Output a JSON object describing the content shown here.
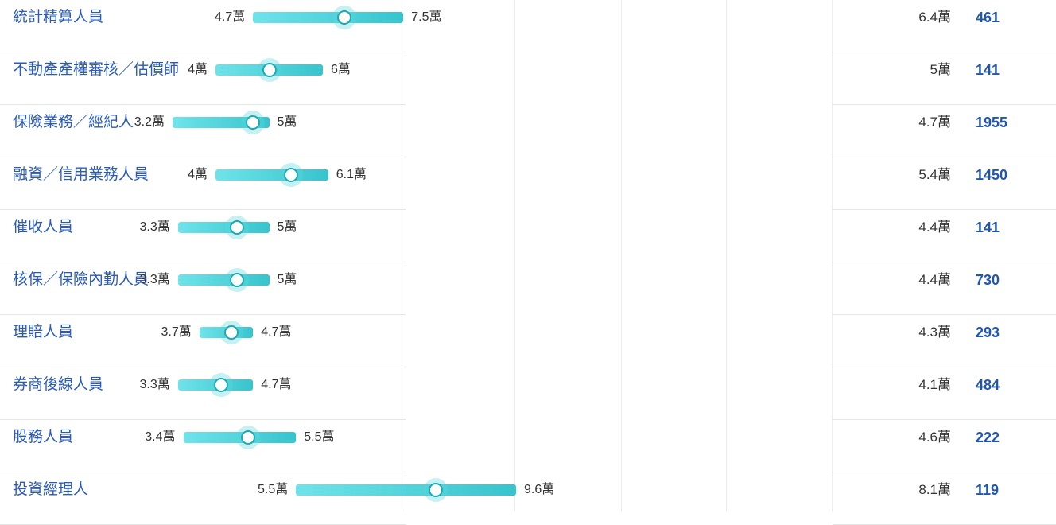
{
  "chart_data": {
    "type": "range",
    "unit": "萬",
    "xlim": [
      0,
      11
    ],
    "rows": [
      {
        "job": "統計精算人員",
        "min": 4.7,
        "max": 7.5,
        "min_label": "4.7萬",
        "max_label": "7.5萬",
        "median": 6.4,
        "median_label": "6.4萬",
        "count": "461"
      },
      {
        "job": "不動產產權審核／估價師",
        "min": 4,
        "max": 6,
        "min_label": "4萬",
        "max_label": "6萬",
        "median": 5,
        "median_label": "5萬",
        "count": "141"
      },
      {
        "job": "保險業務／經紀人",
        "min": 3.2,
        "max": 5,
        "min_label": "3.2萬",
        "max_label": "5萬",
        "median": 4.7,
        "median_label": "4.7萬",
        "count": "1955"
      },
      {
        "job": "融資／信用業務人員",
        "min": 4,
        "max": 6.1,
        "min_label": "4萬",
        "max_label": "6.1萬",
        "median": 5.4,
        "median_label": "5.4萬",
        "count": "1450"
      },
      {
        "job": "催收人員",
        "min": 3.3,
        "max": 5,
        "min_label": "3.3萬",
        "max_label": "5萬",
        "median": 4.4,
        "median_label": "4.4萬",
        "count": "141"
      },
      {
        "job": "核保／保險內勤人員",
        "min": 3.3,
        "max": 5,
        "min_label": "3.3萬",
        "max_label": "5萬",
        "median": 4.4,
        "median_label": "4.4萬",
        "count": "730"
      },
      {
        "job": "理賠人員",
        "min": 3.7,
        "max": 4.7,
        "min_label": "3.7萬",
        "max_label": "4.7萬",
        "median": 4.3,
        "median_label": "4.3萬",
        "count": "293"
      },
      {
        "job": "券商後線人員",
        "min": 3.3,
        "max": 4.7,
        "min_label": "3.3萬",
        "max_label": "4.7萬",
        "median": 4.1,
        "median_label": "4.1萬",
        "count": "484"
      },
      {
        "job": "股務人員",
        "min": 3.4,
        "max": 5.5,
        "min_label": "3.4萬",
        "max_label": "5.5萬",
        "median": 4.6,
        "median_label": "4.6萬",
        "count": "222"
      },
      {
        "job": "投資經理人",
        "min": 5.5,
        "max": 9.6,
        "min_label": "5.5萬",
        "max_label": "9.6萬",
        "median": 8.1,
        "median_label": "8.1萬",
        "count": "119"
      }
    ]
  }
}
